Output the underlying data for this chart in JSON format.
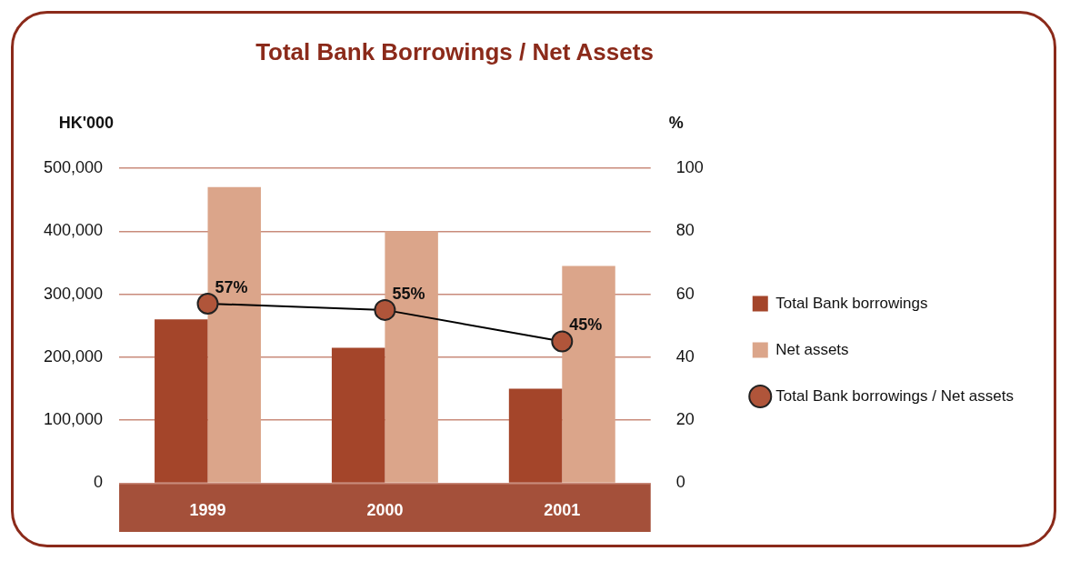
{
  "chart_data": {
    "type": "bar",
    "title": "Total Bank Borrowings / Net Assets",
    "ylabel": "HK'000",
    "y2label": "%",
    "categories": [
      "1999",
      "2000",
      "2001"
    ],
    "series": [
      {
        "name": "Total Bank borrowings",
        "color": "#a4452a",
        "values": [
          260000,
          215000,
          150000
        ]
      },
      {
        "name": "Net assets",
        "color": "#dba58a",
        "values": [
          470000,
          400000,
          345000
        ]
      },
      {
        "name": "Total Bank borrowings / Net assets",
        "type": "line",
        "axis": "y2",
        "color": "#b0553a",
        "values": [
          57,
          55,
          45
        ],
        "value_labels": [
          "57%",
          "55%",
          "45%"
        ]
      }
    ],
    "ylim": [
      0,
      500000
    ],
    "yticks": [
      {
        "value": 0,
        "label": "0"
      },
      {
        "value": 100000,
        "label": "100,000"
      },
      {
        "value": 200000,
        "label": "200,000"
      },
      {
        "value": 300000,
        "label": "300,000"
      },
      {
        "value": 400000,
        "label": "400,000"
      },
      {
        "value": 500000,
        "label": "500,000"
      }
    ],
    "y2lim": [
      0,
      100
    ],
    "y2ticks": [
      0,
      20,
      40,
      60,
      80,
      100
    ],
    "grid": "y",
    "legend": "right",
    "marker": "circle"
  }
}
